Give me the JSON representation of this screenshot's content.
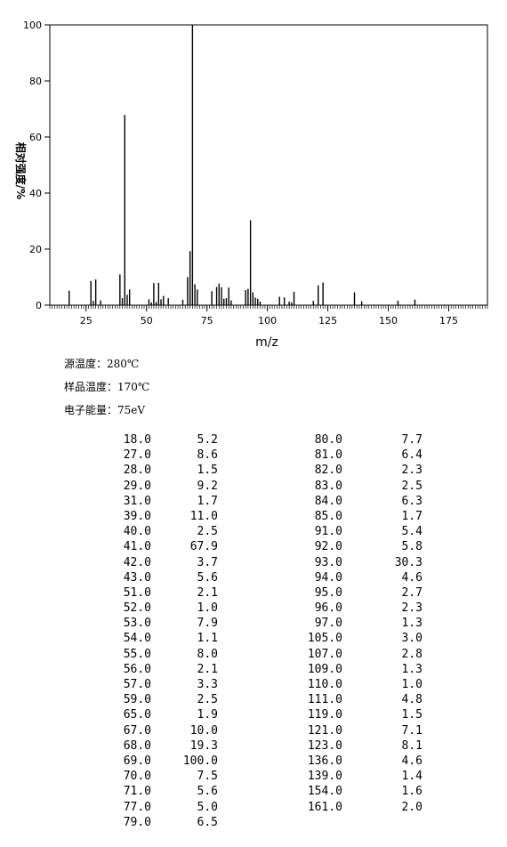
{
  "chart_data": {
    "type": "bar",
    "xlabel": "m/z",
    "ylabel": "相对强度/%",
    "xlim": [
      10,
      191
    ],
    "ylim": [
      0,
      100
    ],
    "xticks": [
      25,
      50,
      75,
      100,
      125,
      150,
      175
    ],
    "yticks": [
      0,
      20,
      40,
      60,
      80,
      100
    ],
    "grid": false,
    "x": [
      18.0,
      27.0,
      28.0,
      29.0,
      31.0,
      39.0,
      40.0,
      41.0,
      42.0,
      43.0,
      51.0,
      52.0,
      53.0,
      54.0,
      55.0,
      56.0,
      57.0,
      59.0,
      65.0,
      67.0,
      68.0,
      69.0,
      70.0,
      71.0,
      77.0,
      79.0,
      80.0,
      81.0,
      82.0,
      83.0,
      84.0,
      85.0,
      91.0,
      92.0,
      93.0,
      94.0,
      95.0,
      96.0,
      97.0,
      105.0,
      107.0,
      109.0,
      110.0,
      111.0,
      119.0,
      121.0,
      123.0,
      136.0,
      139.0,
      154.0,
      161.0
    ],
    "y": [
      5.2,
      8.6,
      1.5,
      9.2,
      1.7,
      11.0,
      2.5,
      67.9,
      3.7,
      5.6,
      2.1,
      1.0,
      7.9,
      1.1,
      8.0,
      2.1,
      3.3,
      2.5,
      1.9,
      10.0,
      19.3,
      100.0,
      7.5,
      5.6,
      5.0,
      6.5,
      7.7,
      6.4,
      2.3,
      2.5,
      6.3,
      1.7,
      5.4,
      5.8,
      30.3,
      4.6,
      2.7,
      2.3,
      1.3,
      3.0,
      2.8,
      1.3,
      1.0,
      4.8,
      1.5,
      7.1,
      8.1,
      4.6,
      1.4,
      1.6,
      2.0
    ]
  },
  "conditions": {
    "source_temp": "源温度：280℃",
    "sample_temp": "样品温度：170℃",
    "electron_energy": "电子能量：75eV"
  },
  "table": {
    "left_mz": [
      "18.0",
      "27.0",
      "28.0",
      "29.0",
      "31.0",
      "39.0",
      "40.0",
      "41.0",
      "42.0",
      "43.0",
      "51.0",
      "52.0",
      "53.0",
      "54.0",
      "55.0",
      "56.0",
      "57.0",
      "59.0",
      "65.0",
      "67.0",
      "68.0",
      "69.0",
      "70.0",
      "71.0",
      "77.0",
      "79.0"
    ],
    "left_int": [
      "5.2",
      "8.6",
      "1.5",
      "9.2",
      "1.7",
      "11.0",
      "2.5",
      "67.9",
      "3.7",
      "5.6",
      "2.1",
      "1.0",
      "7.9",
      "1.1",
      "8.0",
      "2.1",
      "3.3",
      "2.5",
      "1.9",
      "10.0",
      "19.3",
      "100.0",
      "7.5",
      "5.6",
      "5.0",
      "6.5"
    ],
    "right_mz": [
      "80.0",
      "81.0",
      "82.0",
      "83.0",
      "84.0",
      "85.0",
      "91.0",
      "92.0",
      "93.0",
      "94.0",
      "95.0",
      "96.0",
      "97.0",
      "105.0",
      "107.0",
      "109.0",
      "110.0",
      "111.0",
      "119.0",
      "121.0",
      "123.0",
      "136.0",
      "139.0",
      "154.0",
      "161.0"
    ],
    "right_int": [
      "7.7",
      "6.4",
      "2.3",
      "2.5",
      "6.3",
      "1.7",
      "5.4",
      "5.8",
      "30.3",
      "4.6",
      "2.7",
      "2.3",
      "1.3",
      "3.0",
      "2.8",
      "1.3",
      "1.0",
      "4.8",
      "1.5",
      "7.1",
      "8.1",
      "4.6",
      "1.4",
      "1.6",
      "2.0"
    ]
  }
}
